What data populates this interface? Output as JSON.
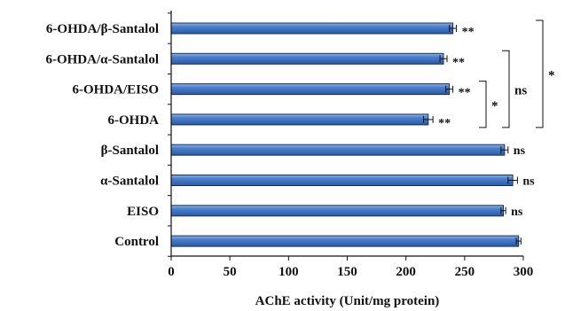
{
  "chart_data": {
    "type": "bar",
    "orientation": "horizontal",
    "categories": [
      "6-OHDA/β-Santalol",
      "6-OHDA/α-Santalol",
      "6-OHDA/EISO",
      "6-OHDA",
      "β-Santalol",
      "α-Santalol",
      "EISO",
      "Control"
    ],
    "values": [
      240,
      232,
      237,
      219,
      284,
      291,
      283,
      296
    ],
    "errors": [
      3,
      3,
      3,
      4,
      3,
      4,
      2,
      2
    ],
    "significance": [
      "**",
      "**",
      "**",
      "**",
      "ns",
      "ns",
      "ns",
      ""
    ],
    "xlabel": "AChE activity (Unit/mg protein)",
    "xlim": [
      0,
      300
    ],
    "xticks": [
      0,
      50,
      100,
      150,
      200,
      250,
      300
    ],
    "grid": false,
    "bar_color": "#3a6fbf",
    "brackets": [
      {
        "from": "6-OHDA/EISO",
        "to": "6-OHDA",
        "label": "*"
      },
      {
        "from": "6-OHDA/α-Santalol",
        "to": "6-OHDA",
        "label": "ns"
      },
      {
        "from": "6-OHDA/β-Santalol",
        "to": "6-OHDA",
        "label": "*"
      }
    ]
  }
}
